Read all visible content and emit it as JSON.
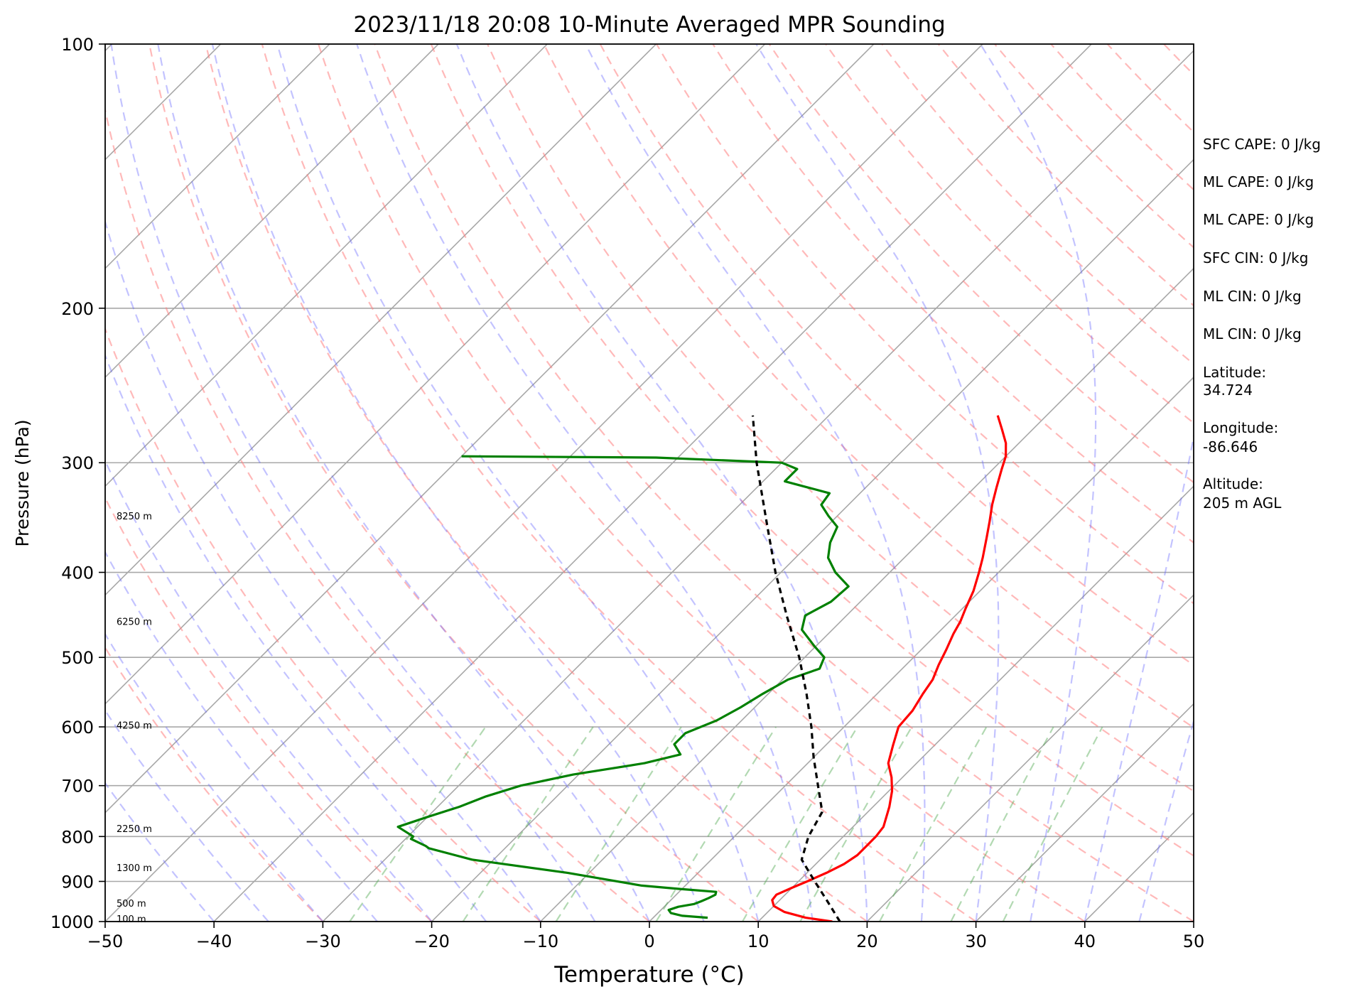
{
  "chart_data": {
    "type": "skew-t",
    "title": "2023/11/18 20:08 10-Minute Averaged MPR Sounding",
    "xlabel": "Temperature (°C)",
    "ylabel": "Pressure (hPa)",
    "xlim": [
      -50,
      50
    ],
    "ylim": [
      1000,
      100
    ],
    "y_scale": "log",
    "grid": true,
    "x_ticks": [
      "−50",
      "−40",
      "−30",
      "−20",
      "−10",
      "0",
      "10",
      "20",
      "30",
      "40",
      "50"
    ],
    "x_tick_values": [
      -50,
      -40,
      -30,
      -20,
      -10,
      0,
      10,
      20,
      30,
      40,
      50
    ],
    "y_ticks": [
      "100",
      "200",
      "300",
      "400",
      "500",
      "600",
      "700",
      "800",
      "900",
      "1000"
    ],
    "y_tick_values": [
      100,
      200,
      300,
      400,
      500,
      600,
      700,
      800,
      900,
      1000
    ],
    "height_labels": [
      {
        "text": "8250 m",
        "p": 345
      },
      {
        "text": "6250 m",
        "p": 455
      },
      {
        "text": "4250 m",
        "p": 597
      },
      {
        "text": "2250 m",
        "p": 783
      },
      {
        "text": "1300 m",
        "p": 868
      },
      {
        "text": "500 m",
        "p": 953
      },
      {
        "text": "100 m",
        "p": 993
      }
    ],
    "series": [
      {
        "color": "#ff0000",
        "points": [
          [
            1000,
            16.8
          ],
          [
            990,
            14.0
          ],
          [
            975,
            11.5
          ],
          [
            960,
            10.0
          ],
          [
            945,
            9.3
          ],
          [
            932,
            9.2
          ],
          [
            915,
            10.0
          ],
          [
            900,
            10.8
          ],
          [
            880,
            11.8
          ],
          [
            860,
            12.6
          ],
          [
            840,
            13.0
          ],
          [
            820,
            13.0
          ],
          [
            800,
            13.0
          ],
          [
            780,
            12.8
          ],
          [
            740,
            11.5
          ],
          [
            710,
            10.3
          ],
          [
            685,
            9.0
          ],
          [
            660,
            7.4
          ],
          [
            630,
            6.2
          ],
          [
            600,
            5.0
          ],
          [
            575,
            4.8
          ],
          [
            550,
            4.2
          ],
          [
            530,
            3.8
          ],
          [
            510,
            3.0
          ],
          [
            490,
            2.3
          ],
          [
            470,
            1.5
          ],
          [
            455,
            1.0
          ],
          [
            440,
            0.3
          ],
          [
            420,
            -0.6
          ],
          [
            400,
            -1.8
          ],
          [
            385,
            -2.8
          ],
          [
            365,
            -4.3
          ],
          [
            350,
            -5.5
          ],
          [
            335,
            -6.8
          ],
          [
            320,
            -8.0
          ],
          [
            305,
            -9.2
          ],
          [
            295,
            -10.0
          ],
          [
            285,
            -11.2
          ],
          [
            275,
            -12.8
          ],
          [
            265,
            -14.5
          ]
        ]
      },
      {
        "color": "#008000",
        "points": [
          [
            990,
            5.0
          ],
          [
            985,
            2.5
          ],
          [
            978,
            1.2
          ],
          [
            970,
            0.7
          ],
          [
            962,
            1.3
          ],
          [
            955,
            2.5
          ],
          [
            948,
            2.9
          ],
          [
            940,
            3.3
          ],
          [
            932,
            3.6
          ],
          [
            925,
            3.4
          ],
          [
            918,
            -0.2
          ],
          [
            910,
            -4.0
          ],
          [
            880,
            -12.0
          ],
          [
            850,
            -22.0
          ],
          [
            825,
            -27.0
          ],
          [
            820,
            -27.5
          ],
          [
            805,
            -29.5
          ],
          [
            800,
            -29.5
          ],
          [
            780,
            -31.8
          ],
          [
            760,
            -30.0
          ],
          [
            740,
            -28.0
          ],
          [
            720,
            -26.5
          ],
          [
            700,
            -24.3
          ],
          [
            680,
            -20.5
          ],
          [
            660,
            -15.0
          ],
          [
            645,
            -12.5
          ],
          [
            628,
            -14.0
          ],
          [
            610,
            -14.0
          ],
          [
            590,
            -12.3
          ],
          [
            570,
            -11.3
          ],
          [
            550,
            -10.5
          ],
          [
            530,
            -9.5
          ],
          [
            515,
            -7.6
          ],
          [
            500,
            -8.2
          ],
          [
            485,
            -10.2
          ],
          [
            465,
            -12.8
          ],
          [
            448,
            -13.8
          ],
          [
            432,
            -12.7
          ],
          [
            415,
            -12.5
          ],
          [
            400,
            -15.0
          ],
          [
            385,
            -17.0
          ],
          [
            370,
            -18.2
          ],
          [
            355,
            -19.0
          ],
          [
            345,
            -20.8
          ],
          [
            335,
            -22.5
          ],
          [
            325,
            -22.8
          ],
          [
            315,
            -28.0
          ],
          [
            305,
            -28.0
          ],
          [
            300,
            -30.0
          ],
          [
            296,
            -42.0
          ],
          [
            295,
            -60.0
          ]
        ]
      },
      {
        "color": "#000000",
        "dash": "8 6",
        "points": [
          [
            1000,
            17.5
          ],
          [
            950,
            14.6
          ],
          [
            900,
            11.5
          ],
          [
            850,
            8.3
          ],
          [
            800,
            6.8
          ],
          [
            750,
            5.8
          ],
          [
            700,
            3.0
          ],
          [
            650,
            0.0
          ],
          [
            600,
            -3.0
          ],
          [
            550,
            -6.5
          ],
          [
            500,
            -10.5
          ],
          [
            450,
            -15.3
          ],
          [
            400,
            -20.5
          ],
          [
            350,
            -26.0
          ],
          [
            300,
            -32.3
          ],
          [
            265,
            -37.0
          ]
        ]
      }
    ]
  },
  "stats": {
    "sfc_cape": "SFC CAPE: 0 J/kg",
    "ml_cape": "ML CAPE: 0 J/kg",
    "ml_cape_2": "ML CAPE: 0 J/kg",
    "sfc_cin": "SFC CIN: 0 J/kg",
    "ml_cin": "ML CIN: 0 J/kg",
    "ml_cin_2": "ML CIN: 0 J/kg",
    "latitude_label": "Latitude:",
    "latitude_value": "34.724",
    "longitude_label": "Longitude:",
    "longitude_value": "-86.646",
    "altitude_label": "Altitude:",
    "altitude_value": "205 m AGL"
  }
}
